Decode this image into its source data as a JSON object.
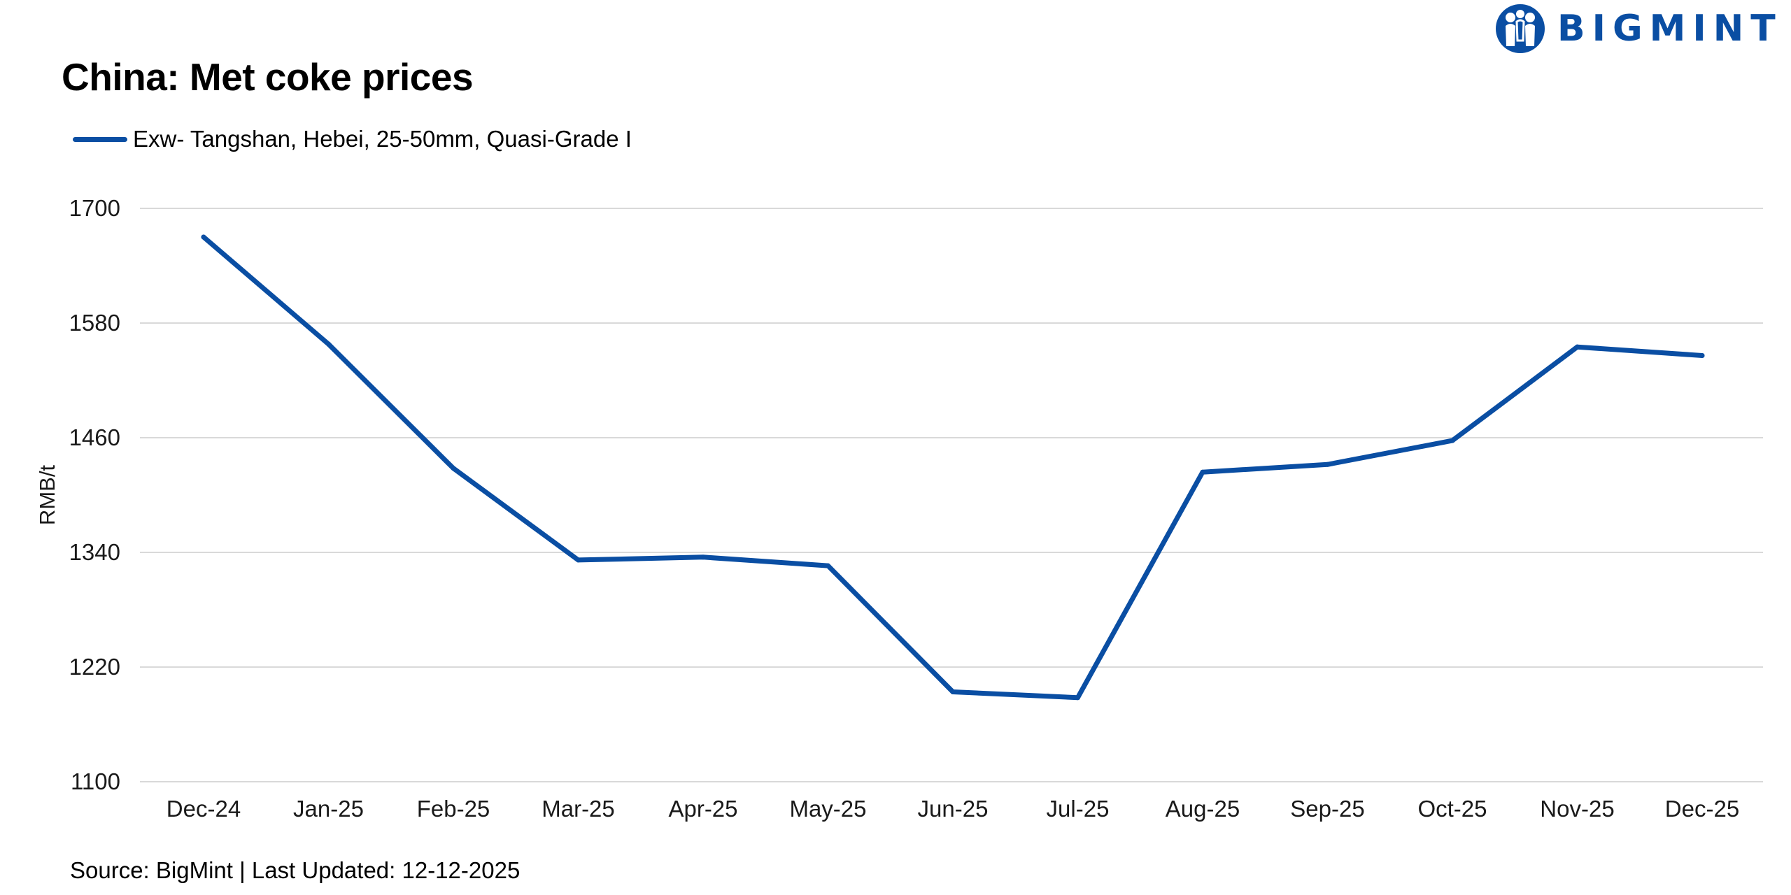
{
  "brand": {
    "name": "BIGMINT",
    "color": "#0a4ea3",
    "logo_icon": "bigmint-people-globe-icon"
  },
  "source_text": "Source: BigMint | Last Updated: 12-12-2025",
  "chart_data": {
    "type": "line",
    "title": "China: Met coke prices",
    "xlabel": "",
    "ylabel": "RMB/t",
    "categories": [
      "Dec-24",
      "Jan-25",
      "Feb-25",
      "Mar-25",
      "Apr-25",
      "May-25",
      "Jun-25",
      "Jul-25",
      "Aug-25",
      "Sep-25",
      "Oct-25",
      "Nov-25",
      "Dec-25"
    ],
    "series": [
      {
        "name": "Exw- Tangshan, Hebei, 25-50mm, Quasi-Grade I",
        "color": "#0a4ea3",
        "values": [
          1670,
          1558,
          1428,
          1332,
          1335,
          1326,
          1194,
          1188,
          1424,
          1432,
          1457,
          1555,
          1546
        ]
      }
    ],
    "ylim": [
      1100,
      1700
    ],
    "yticks": [
      1100,
      1220,
      1340,
      1460,
      1580,
      1700
    ],
    "grid": true,
    "gridline_color": "#d9d9d9",
    "legend_position": "top-left"
  }
}
